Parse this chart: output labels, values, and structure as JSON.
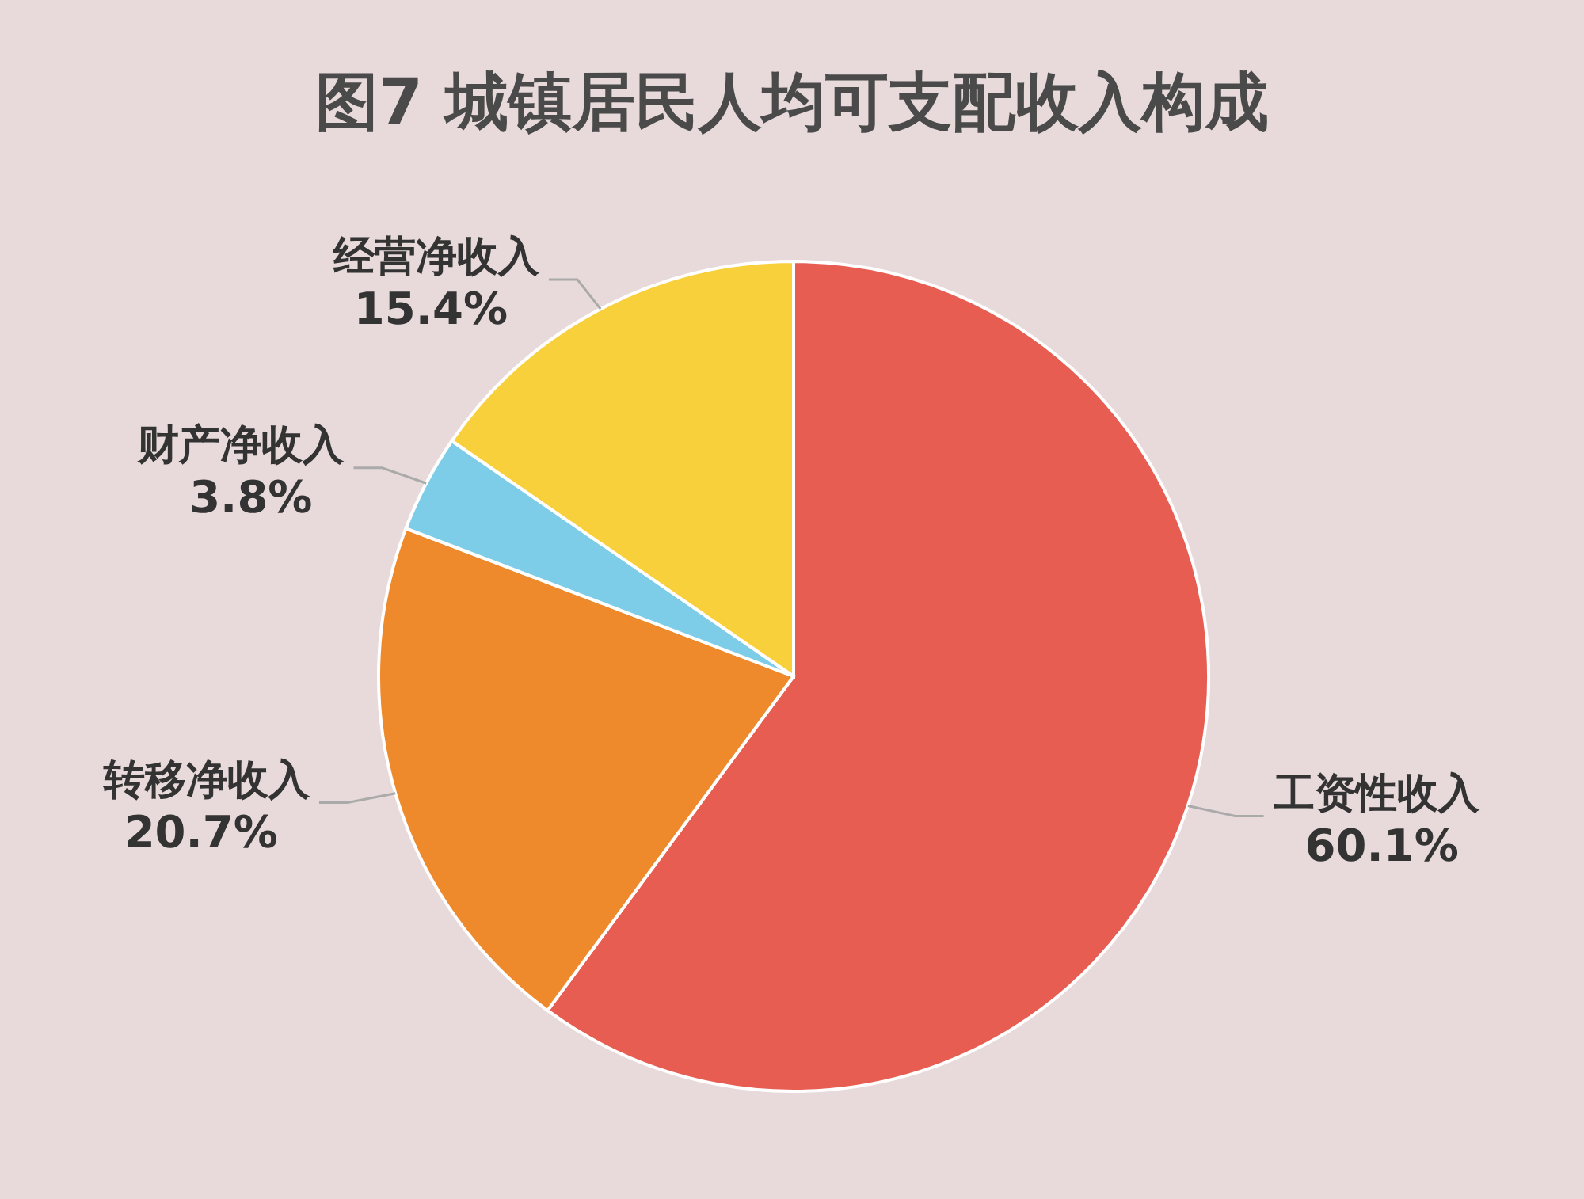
{
  "chart_data": {
    "type": "pie",
    "title": "图7   城镇居民人均可支配收入构成",
    "categories": [
      "工资性收入",
      "转移净收入",
      "财产净收入",
      "经营净收入"
    ],
    "values": [
      60.1,
      20.7,
      3.8,
      15.4
    ],
    "value_labels": [
      "60.1%",
      "20.7%",
      "3.8%",
      "15.4%"
    ],
    "colors": [
      "#e85d52",
      "#ee8a2c",
      "#7ecde8",
      "#f8d03c"
    ]
  }
}
